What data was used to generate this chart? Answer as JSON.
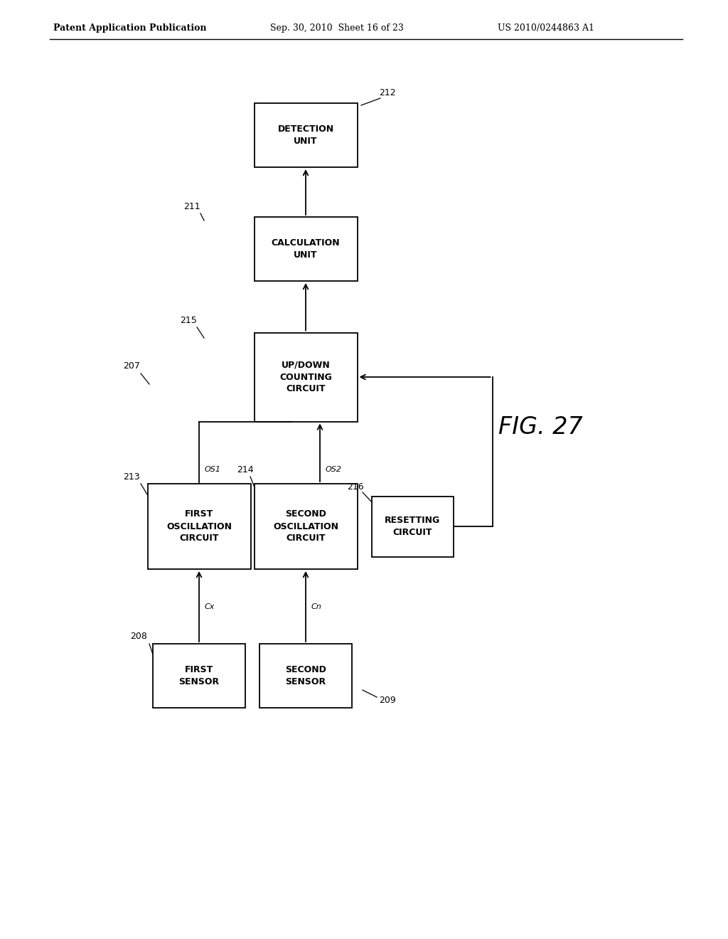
{
  "header_left": "Patent Application Publication",
  "header_mid": "Sep. 30, 2010  Sheet 16 of 23",
  "header_right": "US 2010/0244863 A1",
  "fig_label": "FIG. 27",
  "bg_color": "#ffffff",
  "font_size_box": 9,
  "font_size_ref": 9,
  "font_size_header": 9,
  "font_size_fig": 24,
  "font_size_label": 8
}
